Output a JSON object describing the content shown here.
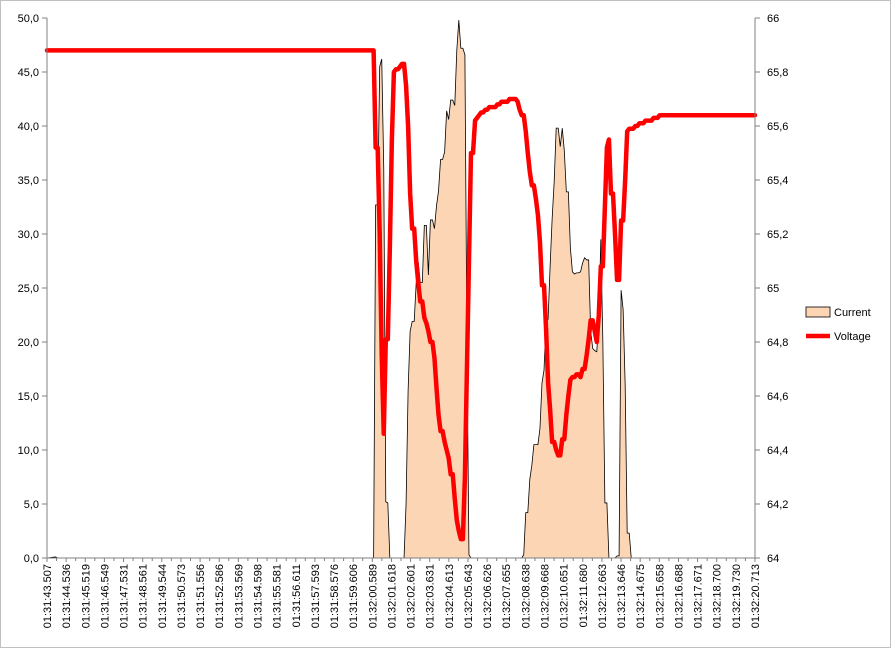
{
  "chart_data": {
    "type": "area+line",
    "title": "",
    "legend_position": "right",
    "grid": false,
    "y_left": {
      "min": 0,
      "max": 50,
      "step": 5,
      "ticks": [
        "0,0",
        "5,0",
        "10,0",
        "15,0",
        "20,0",
        "25,0",
        "30,0",
        "35,0",
        "40,0",
        "45,0",
        "50,0"
      ]
    },
    "y_right": {
      "min": 64,
      "max": 66,
      "step": 0.2,
      "ticks": [
        "64",
        "64,2",
        "64,4",
        "64,6",
        "64,8",
        "65",
        "65,2",
        "65,4",
        "65,6",
        "65,8",
        "66"
      ]
    },
    "x_tick_labels": [
      "01:31:43.507",
      "01:31:44.536",
      "01:31:45.519",
      "01:31:46.549",
      "01:31:47.531",
      "01:31:48.561",
      "01:31:49.544",
      "01:31:50.573",
      "01:31:51.556",
      "01:31:52.586",
      "01:31:53.569",
      "01:31:54.598",
      "01:31:55.581",
      "01:31:56.611",
      "01:31:57.593",
      "01:31:58.576",
      "01:31:59.606",
      "01:32:00.589",
      "01:32:01.618",
      "01:32:02.601",
      "01:32:03.631",
      "01:32:04.613",
      "01:32:05.643",
      "01:32:06.626",
      "01:32:07.655",
      "01:32:08.638",
      "01:32:09.668",
      "01:32:10.651",
      "01:32:11.680",
      "01:32:12.663",
      "01:32:13.646",
      "01:32:14.675",
      "01:32:15.658",
      "01:32:16.688",
      "01:32:17.671",
      "01:32:18.700",
      "01:32:19.730",
      "01:32:20.713"
    ],
    "series": [
      {
        "name": "Current",
        "type": "area",
        "axis": "left",
        "color_fill": "#fcd5b5",
        "color_line": "#000000",
        "points": [
          [
            0,
            0
          ],
          [
            4.2,
            0.1
          ],
          [
            5.3,
            0
          ],
          [
            161,
            0
          ],
          [
            162,
            32.7
          ],
          [
            163,
            32.7
          ],
          [
            164,
            45.5
          ],
          [
            165,
            46.2
          ],
          [
            166,
            36
          ],
          [
            167,
            5.2
          ],
          [
            168,
            5.1
          ],
          [
            169,
            0
          ],
          [
            176,
            0
          ],
          [
            177,
            5
          ],
          [
            178,
            15.5
          ],
          [
            179,
            21
          ],
          [
            180,
            21.9
          ],
          [
            181,
            21.9
          ],
          [
            182,
            25.5
          ],
          [
            183,
            27.4
          ],
          [
            184,
            25.5
          ],
          [
            185,
            25.5
          ],
          [
            186,
            30.8
          ],
          [
            187,
            30.8
          ],
          [
            188,
            26.2
          ],
          [
            189,
            31.3
          ],
          [
            190,
            31.3
          ],
          [
            191,
            30.5
          ],
          [
            192,
            32.6
          ],
          [
            193,
            34
          ],
          [
            194,
            36.9
          ],
          [
            195,
            36.9
          ],
          [
            196,
            37.6
          ],
          [
            197,
            41.4
          ],
          [
            198,
            40.6
          ],
          [
            199,
            42.4
          ],
          [
            200,
            42.4
          ],
          [
            201,
            41.9
          ],
          [
            202,
            47
          ],
          [
            203,
            49.8
          ],
          [
            204,
            47.2
          ],
          [
            205,
            47.2
          ],
          [
            206,
            46.6
          ],
          [
            207,
            20
          ],
          [
            208,
            0.3
          ],
          [
            209,
            0
          ],
          [
            234,
            0
          ],
          [
            235,
            0.3
          ],
          [
            236,
            4.2
          ],
          [
            237,
            4.2
          ],
          [
            238,
            7.3
          ],
          [
            239,
            8.6
          ],
          [
            240,
            10.5
          ],
          [
            241,
            10.5
          ],
          [
            242,
            10.5
          ],
          [
            243,
            12
          ],
          [
            244,
            16.2
          ],
          [
            245,
            17.4
          ],
          [
            246,
            22.1
          ],
          [
            247,
            22.1
          ],
          [
            248,
            27
          ],
          [
            249,
            31.4
          ],
          [
            250,
            34.8
          ],
          [
            251,
            39.8
          ],
          [
            252,
            39.8
          ],
          [
            253,
            38.1
          ],
          [
            254,
            39.8
          ],
          [
            255,
            37.7
          ],
          [
            256,
            33.9
          ],
          [
            257,
            33.9
          ],
          [
            258,
            28.7
          ],
          [
            259,
            26.5
          ],
          [
            260,
            26.3
          ],
          [
            261,
            26.4
          ],
          [
            262,
            26.4
          ],
          [
            263,
            26.5
          ],
          [
            264,
            27.3
          ],
          [
            265,
            27.8
          ],
          [
            266,
            27.6
          ],
          [
            267,
            27.6
          ],
          [
            268,
            21
          ],
          [
            269,
            19.4
          ],
          [
            270,
            19.2
          ],
          [
            271,
            19.1
          ],
          [
            272,
            22
          ],
          [
            273,
            29.5
          ],
          [
            274,
            20
          ],
          [
            275,
            5.1
          ],
          [
            276,
            5.1
          ],
          [
            277,
            0
          ],
          [
            280,
            0
          ],
          [
            281,
            0.2
          ],
          [
            282,
            0.2
          ],
          [
            283,
            24.8
          ],
          [
            284,
            23
          ],
          [
            285,
            16
          ],
          [
            286,
            2.3
          ],
          [
            287,
            2.3
          ],
          [
            288,
            0
          ],
          [
            349,
            0
          ]
        ]
      },
      {
        "name": "Voltage",
        "type": "line",
        "axis": "right",
        "color_line": "#ff0000",
        "points": [
          [
            0,
            65.88
          ],
          [
            161,
            65.88
          ],
          [
            162,
            65.52
          ],
          [
            163,
            65.52
          ],
          [
            164,
            65.2
          ],
          [
            165,
            64.75
          ],
          [
            166,
            64.46
          ],
          [
            167,
            64.81
          ],
          [
            168,
            64.81
          ],
          [
            169,
            65.15
          ],
          [
            170,
            65.55
          ],
          [
            171,
            65.8
          ],
          [
            172,
            65.81
          ],
          [
            173,
            65.81
          ],
          [
            174,
            65.82
          ],
          [
            175,
            65.83
          ],
          [
            176,
            65.83
          ],
          [
            177,
            65.75
          ],
          [
            178,
            65.6
          ],
          [
            179,
            65.35
          ],
          [
            180,
            65.22
          ],
          [
            181,
            65.22
          ],
          [
            182,
            65.1
          ],
          [
            183,
            65.02
          ],
          [
            184,
            64.95
          ],
          [
            185,
            64.95
          ],
          [
            186,
            64.89
          ],
          [
            187,
            64.87
          ],
          [
            188,
            64.84
          ],
          [
            189,
            64.8
          ],
          [
            190,
            64.8
          ],
          [
            191,
            64.74
          ],
          [
            192,
            64.63
          ],
          [
            193,
            64.53
          ],
          [
            194,
            64.47
          ],
          [
            195,
            64.47
          ],
          [
            196,
            64.43
          ],
          [
            197,
            64.4
          ],
          [
            198,
            64.37
          ],
          [
            199,
            64.31
          ],
          [
            200,
            64.31
          ],
          [
            201,
            64.22
          ],
          [
            202,
            64.14
          ],
          [
            203,
            64.1
          ],
          [
            204,
            64.07
          ],
          [
            205,
            64.07
          ],
          [
            206,
            64.3
          ],
          [
            207,
            64.7
          ],
          [
            208,
            65.1
          ],
          [
            209,
            65.5
          ],
          [
            210,
            65.5
          ],
          [
            211,
            65.62
          ],
          [
            212,
            65.63
          ],
          [
            213,
            65.64
          ],
          [
            214,
            65.65
          ],
          [
            215,
            65.65
          ],
          [
            216,
            65.66
          ],
          [
            217,
            65.66
          ],
          [
            218,
            65.67
          ],
          [
            219,
            65.67
          ],
          [
            220,
            65.67
          ],
          [
            221,
            65.67
          ],
          [
            222,
            65.68
          ],
          [
            223,
            65.68
          ],
          [
            224,
            65.69
          ],
          [
            225,
            65.69
          ],
          [
            226,
            65.69
          ],
          [
            227,
            65.69
          ],
          [
            228,
            65.7
          ],
          [
            229,
            65.7
          ],
          [
            230,
            65.7
          ],
          [
            231,
            65.7
          ],
          [
            232,
            65.69
          ],
          [
            233,
            65.66
          ],
          [
            234,
            65.64
          ],
          [
            235,
            65.64
          ],
          [
            236,
            65.58
          ],
          [
            237,
            65.5
          ],
          [
            238,
            65.43
          ],
          [
            239,
            65.38
          ],
          [
            240,
            65.38
          ],
          [
            241,
            65.33
          ],
          [
            242,
            65.27
          ],
          [
            243,
            65.17
          ],
          [
            244,
            65.01
          ],
          [
            245,
            65.01
          ],
          [
            246,
            64.85
          ],
          [
            247,
            64.65
          ],
          [
            248,
            64.55
          ],
          [
            249,
            64.43
          ],
          [
            250,
            64.43
          ],
          [
            251,
            64.4
          ],
          [
            252,
            64.38
          ],
          [
            253,
            64.38
          ],
          [
            254,
            64.44
          ],
          [
            255,
            64.44
          ],
          [
            256,
            64.53
          ],
          [
            257,
            64.6
          ],
          [
            258,
            64.66
          ],
          [
            259,
            64.67
          ],
          [
            260,
            64.67
          ],
          [
            261,
            64.68
          ],
          [
            262,
            64.68
          ],
          [
            263,
            64.67
          ],
          [
            264,
            64.7
          ],
          [
            265,
            64.7
          ],
          [
            266,
            64.75
          ],
          [
            267,
            64.81
          ],
          [
            268,
            64.88
          ],
          [
            269,
            64.88
          ],
          [
            270,
            64.84
          ],
          [
            271,
            64.8
          ],
          [
            272,
            64.9
          ],
          [
            273,
            65.08
          ],
          [
            274,
            65.08
          ],
          [
            275,
            65.3
          ],
          [
            276,
            65.52
          ],
          [
            277,
            65.55
          ],
          [
            278,
            65.35
          ],
          [
            279,
            65.35
          ],
          [
            280,
            65.2
          ],
          [
            281,
            65.03
          ],
          [
            282,
            65.03
          ],
          [
            283,
            65.25
          ],
          [
            284,
            65.25
          ],
          [
            285,
            65.4
          ],
          [
            286,
            65.58
          ],
          [
            287,
            65.59
          ],
          [
            288,
            65.59
          ],
          [
            289,
            65.59
          ],
          [
            290,
            65.6
          ],
          [
            291,
            65.6
          ],
          [
            292,
            65.61
          ],
          [
            293,
            65.61
          ],
          [
            294,
            65.61
          ],
          [
            295,
            65.62
          ],
          [
            296,
            65.62
          ],
          [
            297,
            65.62
          ],
          [
            298,
            65.62
          ],
          [
            299,
            65.63
          ],
          [
            300,
            65.63
          ],
          [
            301,
            65.63
          ],
          [
            302,
            65.64
          ],
          [
            349,
            65.64
          ]
        ]
      }
    ]
  }
}
